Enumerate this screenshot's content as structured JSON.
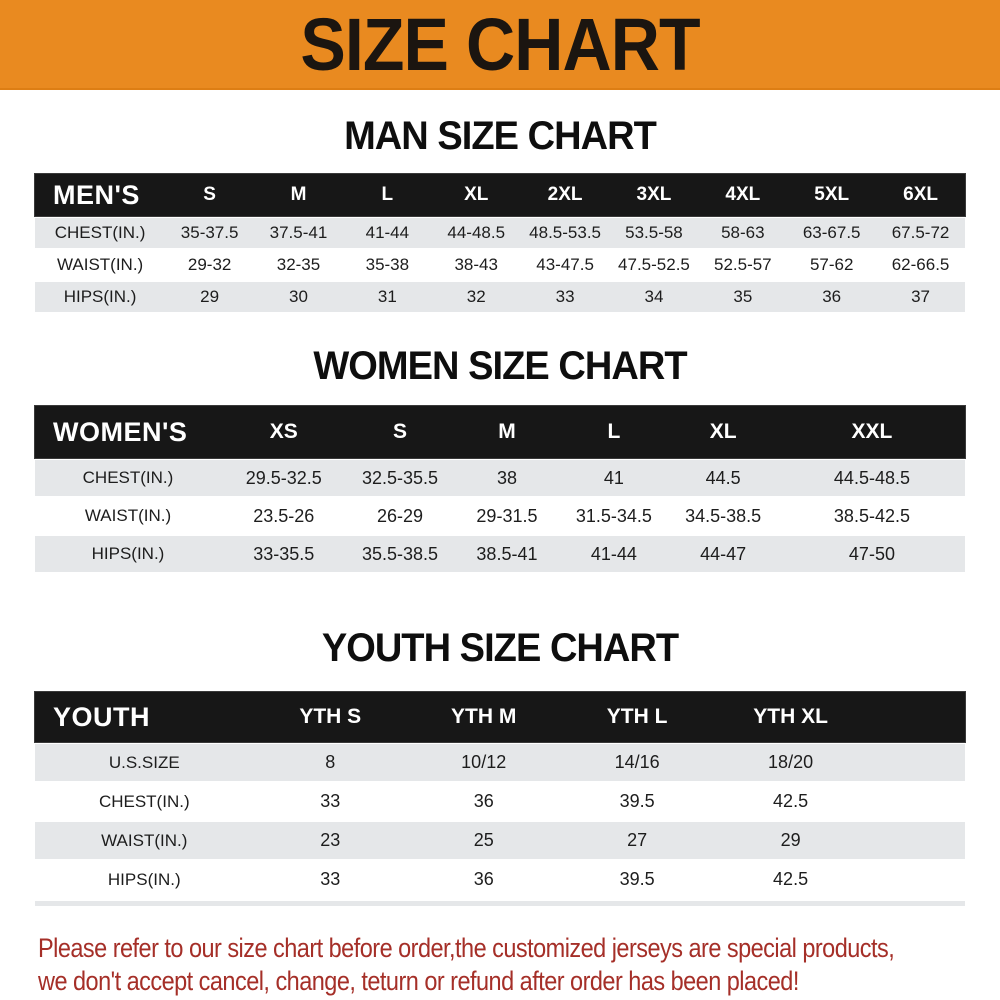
{
  "banner": {
    "title": "SIZE CHART"
  },
  "men": {
    "title": "MAN SIZE CHART",
    "group_label": "MEN'S",
    "sizes": [
      "S",
      "M",
      "L",
      "XL",
      "2XL",
      "3XL",
      "4XL",
      "5XL",
      "6XL"
    ],
    "chest": {
      "label": "CHEST(IN.)",
      "values": [
        "35-37.5",
        "37.5-41",
        "41-44",
        "44-48.5",
        "48.5-53.5",
        "53.5-58",
        "58-63",
        "63-67.5",
        "67.5-72"
      ]
    },
    "waist": {
      "label": "WAIST(IN.)",
      "values": [
        "29-32",
        "32-35",
        "35-38",
        "38-43",
        "43-47.5",
        "47.5-52.5",
        "52.5-57",
        "57-62",
        "62-66.5"
      ]
    },
    "hips": {
      "label": "HIPS(IN.)",
      "values": [
        "29",
        "30",
        "31",
        "32",
        "33",
        "34",
        "35",
        "36",
        "37"
      ]
    }
  },
  "women": {
    "title": "WOMEN SIZE CHART",
    "group_label": "WOMEN'S",
    "sizes": [
      "XS",
      "S",
      "M",
      "L",
      "XL",
      "XXL"
    ],
    "chest": {
      "label": "CHEST(IN.)",
      "values": [
        "29.5-32.5",
        "32.5-35.5",
        "38",
        "41",
        "44.5",
        "44.5-48.5"
      ]
    },
    "waist": {
      "label": "WAIST(IN.)",
      "values": [
        "23.5-26",
        "26-29",
        "29-31.5",
        "31.5-34.5",
        "34.5-38.5",
        "38.5-42.5"
      ]
    },
    "hips": {
      "label": "HIPS(IN.)",
      "values": [
        "33-35.5",
        "35.5-38.5",
        "38.5-41",
        "41-44",
        "44-47",
        "47-50"
      ]
    }
  },
  "youth": {
    "title": "YOUTH SIZE CHART",
    "group_label": "YOUTH",
    "sizes": [
      "YTH S",
      "YTH M",
      "YTH L",
      "YTH XL"
    ],
    "us_size": {
      "label": "U.S.SIZE",
      "values": [
        "8",
        "10/12",
        "14/16",
        "18/20"
      ]
    },
    "chest": {
      "label": "CHEST(IN.)",
      "values": [
        "33",
        "36",
        "39.5",
        "42.5"
      ]
    },
    "waist": {
      "label": "WAIST(IN.)",
      "values": [
        "23",
        "25",
        "27",
        "29"
      ]
    },
    "hips": {
      "label": "HIPS(IN.)",
      "values": [
        "33",
        "36",
        "39.5",
        "42.5"
      ]
    }
  },
  "footer": {
    "line1": "Please refer to our size chart before order,the customized jerseys are special products,",
    "line2": "we don't accept cancel, change, teturn or refund after order has been placed!"
  },
  "colors": {
    "banner_orange": "#E98A20",
    "bar_black": "#171717",
    "row_gray": "#E5E7E9",
    "note_red": "#A52F28"
  }
}
